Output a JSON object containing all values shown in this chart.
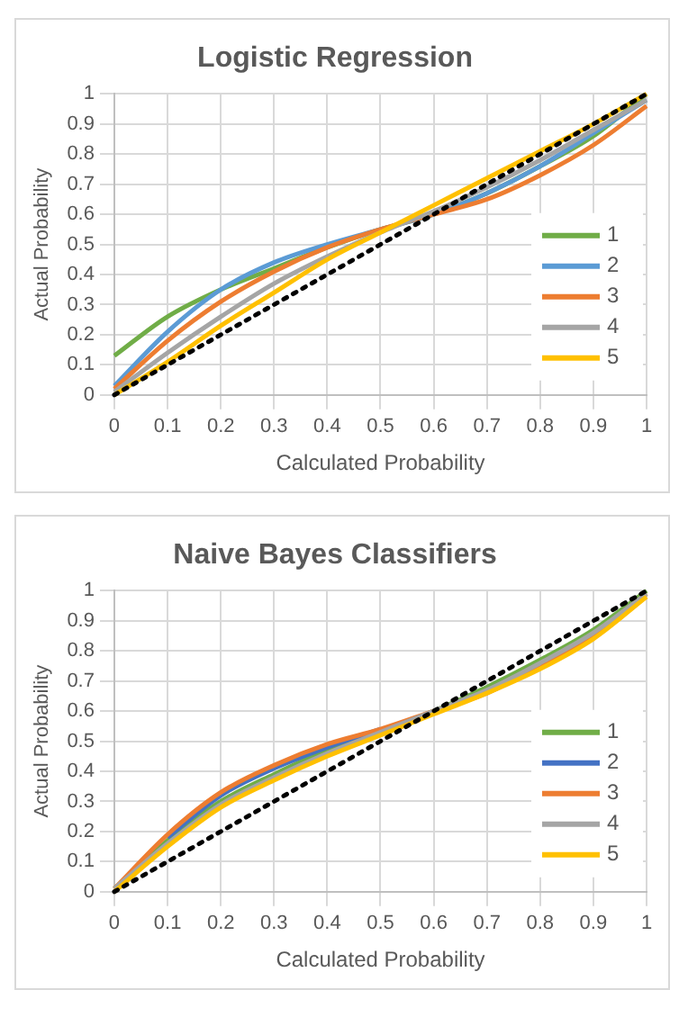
{
  "chart_data": [
    {
      "type": "line",
      "title": "Logistic Regression",
      "xlabel": "Calculated Probability",
      "ylabel": "Actual Probability",
      "x": [
        0,
        0.1,
        0.2,
        0.3,
        0.4,
        0.5,
        0.6,
        0.7,
        0.8,
        0.9,
        1
      ],
      "xlim": [
        0,
        1
      ],
      "xticks": [
        0,
        0.1,
        0.2,
        0.3,
        0.4,
        0.5,
        0.6,
        0.7,
        0.8,
        0.9,
        1
      ],
      "ylim": [
        0,
        1
      ],
      "yticks": [
        0,
        0.1,
        0.2,
        0.3,
        0.4,
        0.5,
        0.6,
        0.7,
        0.8,
        0.9,
        1
      ],
      "grid": true,
      "legend": "right",
      "marker": "none",
      "series": [
        {
          "name": "1",
          "color": "#70ad47",
          "values": [
            0.13,
            0.26,
            0.35,
            0.42,
            0.49,
            0.55,
            0.6,
            0.67,
            0.76,
            0.86,
            1.0
          ]
        },
        {
          "name": "2",
          "color": "#5b9bd5",
          "values": [
            0.03,
            0.21,
            0.35,
            0.44,
            0.5,
            0.55,
            0.6,
            0.67,
            0.76,
            0.87,
            0.98
          ]
        },
        {
          "name": "3",
          "color": "#ed7d31",
          "values": [
            0.02,
            0.18,
            0.31,
            0.41,
            0.49,
            0.55,
            0.6,
            0.65,
            0.73,
            0.83,
            0.96
          ]
        },
        {
          "name": "4",
          "color": "#a5a5a5",
          "values": [
            0.01,
            0.14,
            0.26,
            0.37,
            0.46,
            0.54,
            0.61,
            0.69,
            0.78,
            0.88,
            0.98
          ]
        },
        {
          "name": "5",
          "color": "#ffc000",
          "values": [
            0.0,
            0.11,
            0.23,
            0.34,
            0.45,
            0.54,
            0.63,
            0.72,
            0.81,
            0.9,
            1.0
          ]
        },
        {
          "color": "#000000",
          "values": [
            0,
            0.1,
            0.2,
            0.3,
            0.4,
            0.5,
            0.6,
            0.7,
            0.8,
            0.9,
            1
          ],
          "line_style": "dotted"
        }
      ]
    },
    {
      "type": "line",
      "title": "Naive Bayes Classifiers",
      "xlabel": "Calculated Probability",
      "ylabel": "Actual Probability",
      "x": [
        0,
        0.1,
        0.2,
        0.3,
        0.4,
        0.5,
        0.6,
        0.7,
        0.8,
        0.9,
        1
      ],
      "xlim": [
        0,
        1
      ],
      "xticks": [
        0,
        0.1,
        0.2,
        0.3,
        0.4,
        0.5,
        0.6,
        0.7,
        0.8,
        0.9,
        1
      ],
      "ylim": [
        0,
        1
      ],
      "yticks": [
        0,
        0.1,
        0.2,
        0.3,
        0.4,
        0.5,
        0.6,
        0.7,
        0.8,
        0.9,
        1
      ],
      "grid": true,
      "legend": "right",
      "marker": "none",
      "series": [
        {
          "name": "1",
          "color": "#70ad47",
          "values": [
            0.01,
            0.17,
            0.3,
            0.39,
            0.47,
            0.53,
            0.6,
            0.68,
            0.77,
            0.87,
            1.0
          ]
        },
        {
          "name": "2",
          "color": "#4472c4",
          "values": [
            null,
            0.18,
            0.32,
            0.41,
            0.48,
            0.54,
            null,
            null,
            null,
            null,
            null
          ]
        },
        {
          "name": "3",
          "color": "#ed7d31",
          "values": [
            0.01,
            0.19,
            0.33,
            0.42,
            0.49,
            0.54,
            0.6,
            0.66,
            0.75,
            0.85,
            0.99
          ]
        },
        {
          "name": "4",
          "color": "#a5a5a5",
          "values": [
            0.01,
            0.16,
            0.29,
            0.38,
            0.46,
            0.53,
            0.6,
            0.67,
            0.76,
            0.86,
            0.99
          ]
        },
        {
          "name": "5",
          "color": "#ffc000",
          "values": [
            0.0,
            0.15,
            0.28,
            0.37,
            0.45,
            0.52,
            0.59,
            0.66,
            0.74,
            0.84,
            0.98
          ]
        },
        {
          "color": "#000000",
          "values": [
            0,
            0.1,
            0.2,
            0.3,
            0.4,
            0.5,
            0.6,
            0.7,
            0.8,
            0.9,
            1
          ],
          "line_style": "dotted"
        }
      ]
    }
  ]
}
